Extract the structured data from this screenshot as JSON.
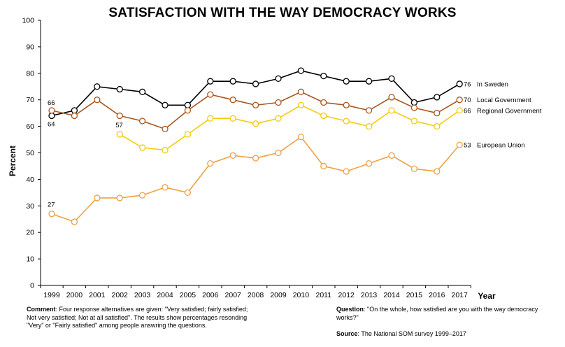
{
  "chart_data": {
    "type": "line",
    "title": "SATISFACTION WITH THE WAY DEMOCRACY WORKS",
    "xlabel": "Year",
    "ylabel": "Percent",
    "ylim": [
      0,
      100
    ],
    "yticks": [
      "0",
      "10",
      "20",
      "30",
      "40",
      "50",
      "60",
      "70",
      "80",
      "90",
      "100"
    ],
    "x": [
      "1999",
      "2000",
      "2001",
      "2002",
      "2003",
      "2004",
      "2005",
      "2006",
      "2007",
      "2008",
      "2009",
      "2010",
      "2011",
      "2012",
      "2013",
      "2014",
      "2015",
      "2016",
      "2017"
    ],
    "grid": false,
    "series": [
      {
        "name": "In Sweden",
        "color": "#000000",
        "values": [
          64,
          66,
          75,
          74,
          73,
          68,
          68,
          77,
          77,
          76,
          78,
          81,
          79,
          77,
          77,
          78,
          69,
          71,
          76
        ],
        "start_label": "64",
        "end_label": "76"
      },
      {
        "name": "Local Government",
        "color": "#a9551b",
        "values": [
          66,
          64,
          70,
          64,
          62,
          59,
          66,
          72,
          70,
          68,
          69,
          73,
          69,
          68,
          66,
          71,
          67,
          65,
          70
        ],
        "start_label": "66",
        "end_label": "70"
      },
      {
        "name": "Regional Government",
        "color": "#f2cc0c",
        "values": [
          null,
          null,
          null,
          57,
          52,
          51,
          57,
          63,
          63,
          61,
          63,
          68,
          64,
          62,
          60,
          66,
          62,
          60,
          66
        ],
        "start_label": "57",
        "end_label": "66"
      },
      {
        "name": "European Union",
        "color": "#f0a043",
        "values": [
          27,
          24,
          33,
          33,
          34,
          37,
          35,
          46,
          49,
          48,
          50,
          56,
          45,
          43,
          46,
          49,
          44,
          43,
          53
        ],
        "start_label": "27",
        "end_label": "53"
      }
    ]
  },
  "notes": {
    "comment_label": "Comment",
    "comment_text": ": Four response alternatives are given: \"Very satisfied; fairly satisfied; Not very satisfied; Not at all satisfied\". The results show percentages resonding \"Very\" or \"Fairly satisfied\" among people answring the questions.",
    "question_label": "Question",
    "question_text": ": \"On the whole, how satisfied are you with the way democracy works?\"",
    "source_label": "Source",
    "source_text": ": The National SOM survey 1999–2017"
  }
}
